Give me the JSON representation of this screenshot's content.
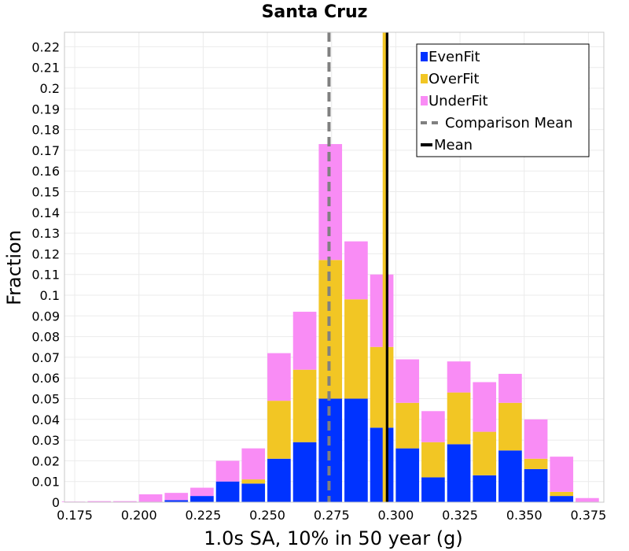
{
  "chart_data": {
    "type": "bar",
    "stacked": true,
    "title": "Santa Cruz",
    "xlabel": "1.0s SA, 10% in 50 year (g)",
    "ylabel": "Fraction",
    "xlim": [
      0.171,
      0.381
    ],
    "ylim": [
      0,
      0.227
    ],
    "bin_width": 0.01,
    "bin_centers": [
      0.175,
      0.185,
      0.195,
      0.205,
      0.215,
      0.225,
      0.235,
      0.245,
      0.255,
      0.265,
      0.275,
      0.285,
      0.295,
      0.305,
      0.315,
      0.325,
      0.335,
      0.345,
      0.355,
      0.365,
      0.375
    ],
    "series": [
      {
        "name": "EvenFit",
        "color": "#0033ff",
        "values": [
          0.0,
          0.0,
          0.0,
          0.0002,
          0.001,
          0.003,
          0.01,
          0.009,
          0.021,
          0.029,
          0.05,
          0.05,
          0.036,
          0.026,
          0.012,
          0.028,
          0.013,
          0.025,
          0.016,
          0.003,
          0.0
        ]
      },
      {
        "name": "OverFit",
        "color": "#f2c624",
        "values": [
          0.0,
          0.0,
          0.0,
          0.0,
          0.0,
          0.0,
          0.0,
          0.002,
          0.028,
          0.035,
          0.067,
          0.048,
          0.039,
          0.022,
          0.017,
          0.025,
          0.021,
          0.023,
          0.005,
          0.002,
          0.0
        ]
      },
      {
        "name": "UnderFit",
        "color": "#f98cf5",
        "values": [
          0.0003,
          0.0005,
          0.0005,
          0.0036,
          0.0035,
          0.004,
          0.01,
          0.015,
          0.023,
          0.028,
          0.056,
          0.028,
          0.035,
          0.021,
          0.015,
          0.015,
          0.024,
          0.014,
          0.019,
          0.017,
          0.002
        ]
      }
    ],
    "vlines": [
      {
        "name": "Comparison Mean",
        "x": 0.274,
        "color": "#808080",
        "style": "dashed"
      },
      {
        "name": "Mean",
        "x": 0.2965,
        "color": "#000000",
        "style": "solid"
      },
      {
        "name": "",
        "x": 0.2955,
        "color": "#f2c624",
        "style": "solid"
      }
    ],
    "x_ticks": [
      "0.175",
      "0.200",
      "0.225",
      "0.250",
      "0.275",
      "0.300",
      "0.325",
      "0.350",
      "0.375"
    ],
    "y_ticks": [
      "0",
      "0.01",
      "0.02",
      "0.03",
      "0.04",
      "0.05",
      "0.06",
      "0.07",
      "0.08",
      "0.09",
      "0.1",
      "0.11",
      "0.12",
      "0.13",
      "0.14",
      "0.15",
      "0.16",
      "0.17",
      "0.18",
      "0.19",
      "0.2",
      "0.21",
      "0.22"
    ],
    "legend": {
      "placement": "top-right",
      "entries": [
        {
          "label": "EvenFit",
          "kind": "box",
          "color": "#0033ff"
        },
        {
          "label": "OverFit",
          "kind": "box",
          "color": "#f2c624"
        },
        {
          "label": "UnderFit",
          "kind": "box",
          "color": "#f98cf5"
        },
        {
          "label": "Comparison Mean",
          "kind": "dashed",
          "color": "#808080"
        },
        {
          "label": "Mean",
          "kind": "solid",
          "color": "#000000"
        }
      ]
    },
    "grid": true
  }
}
